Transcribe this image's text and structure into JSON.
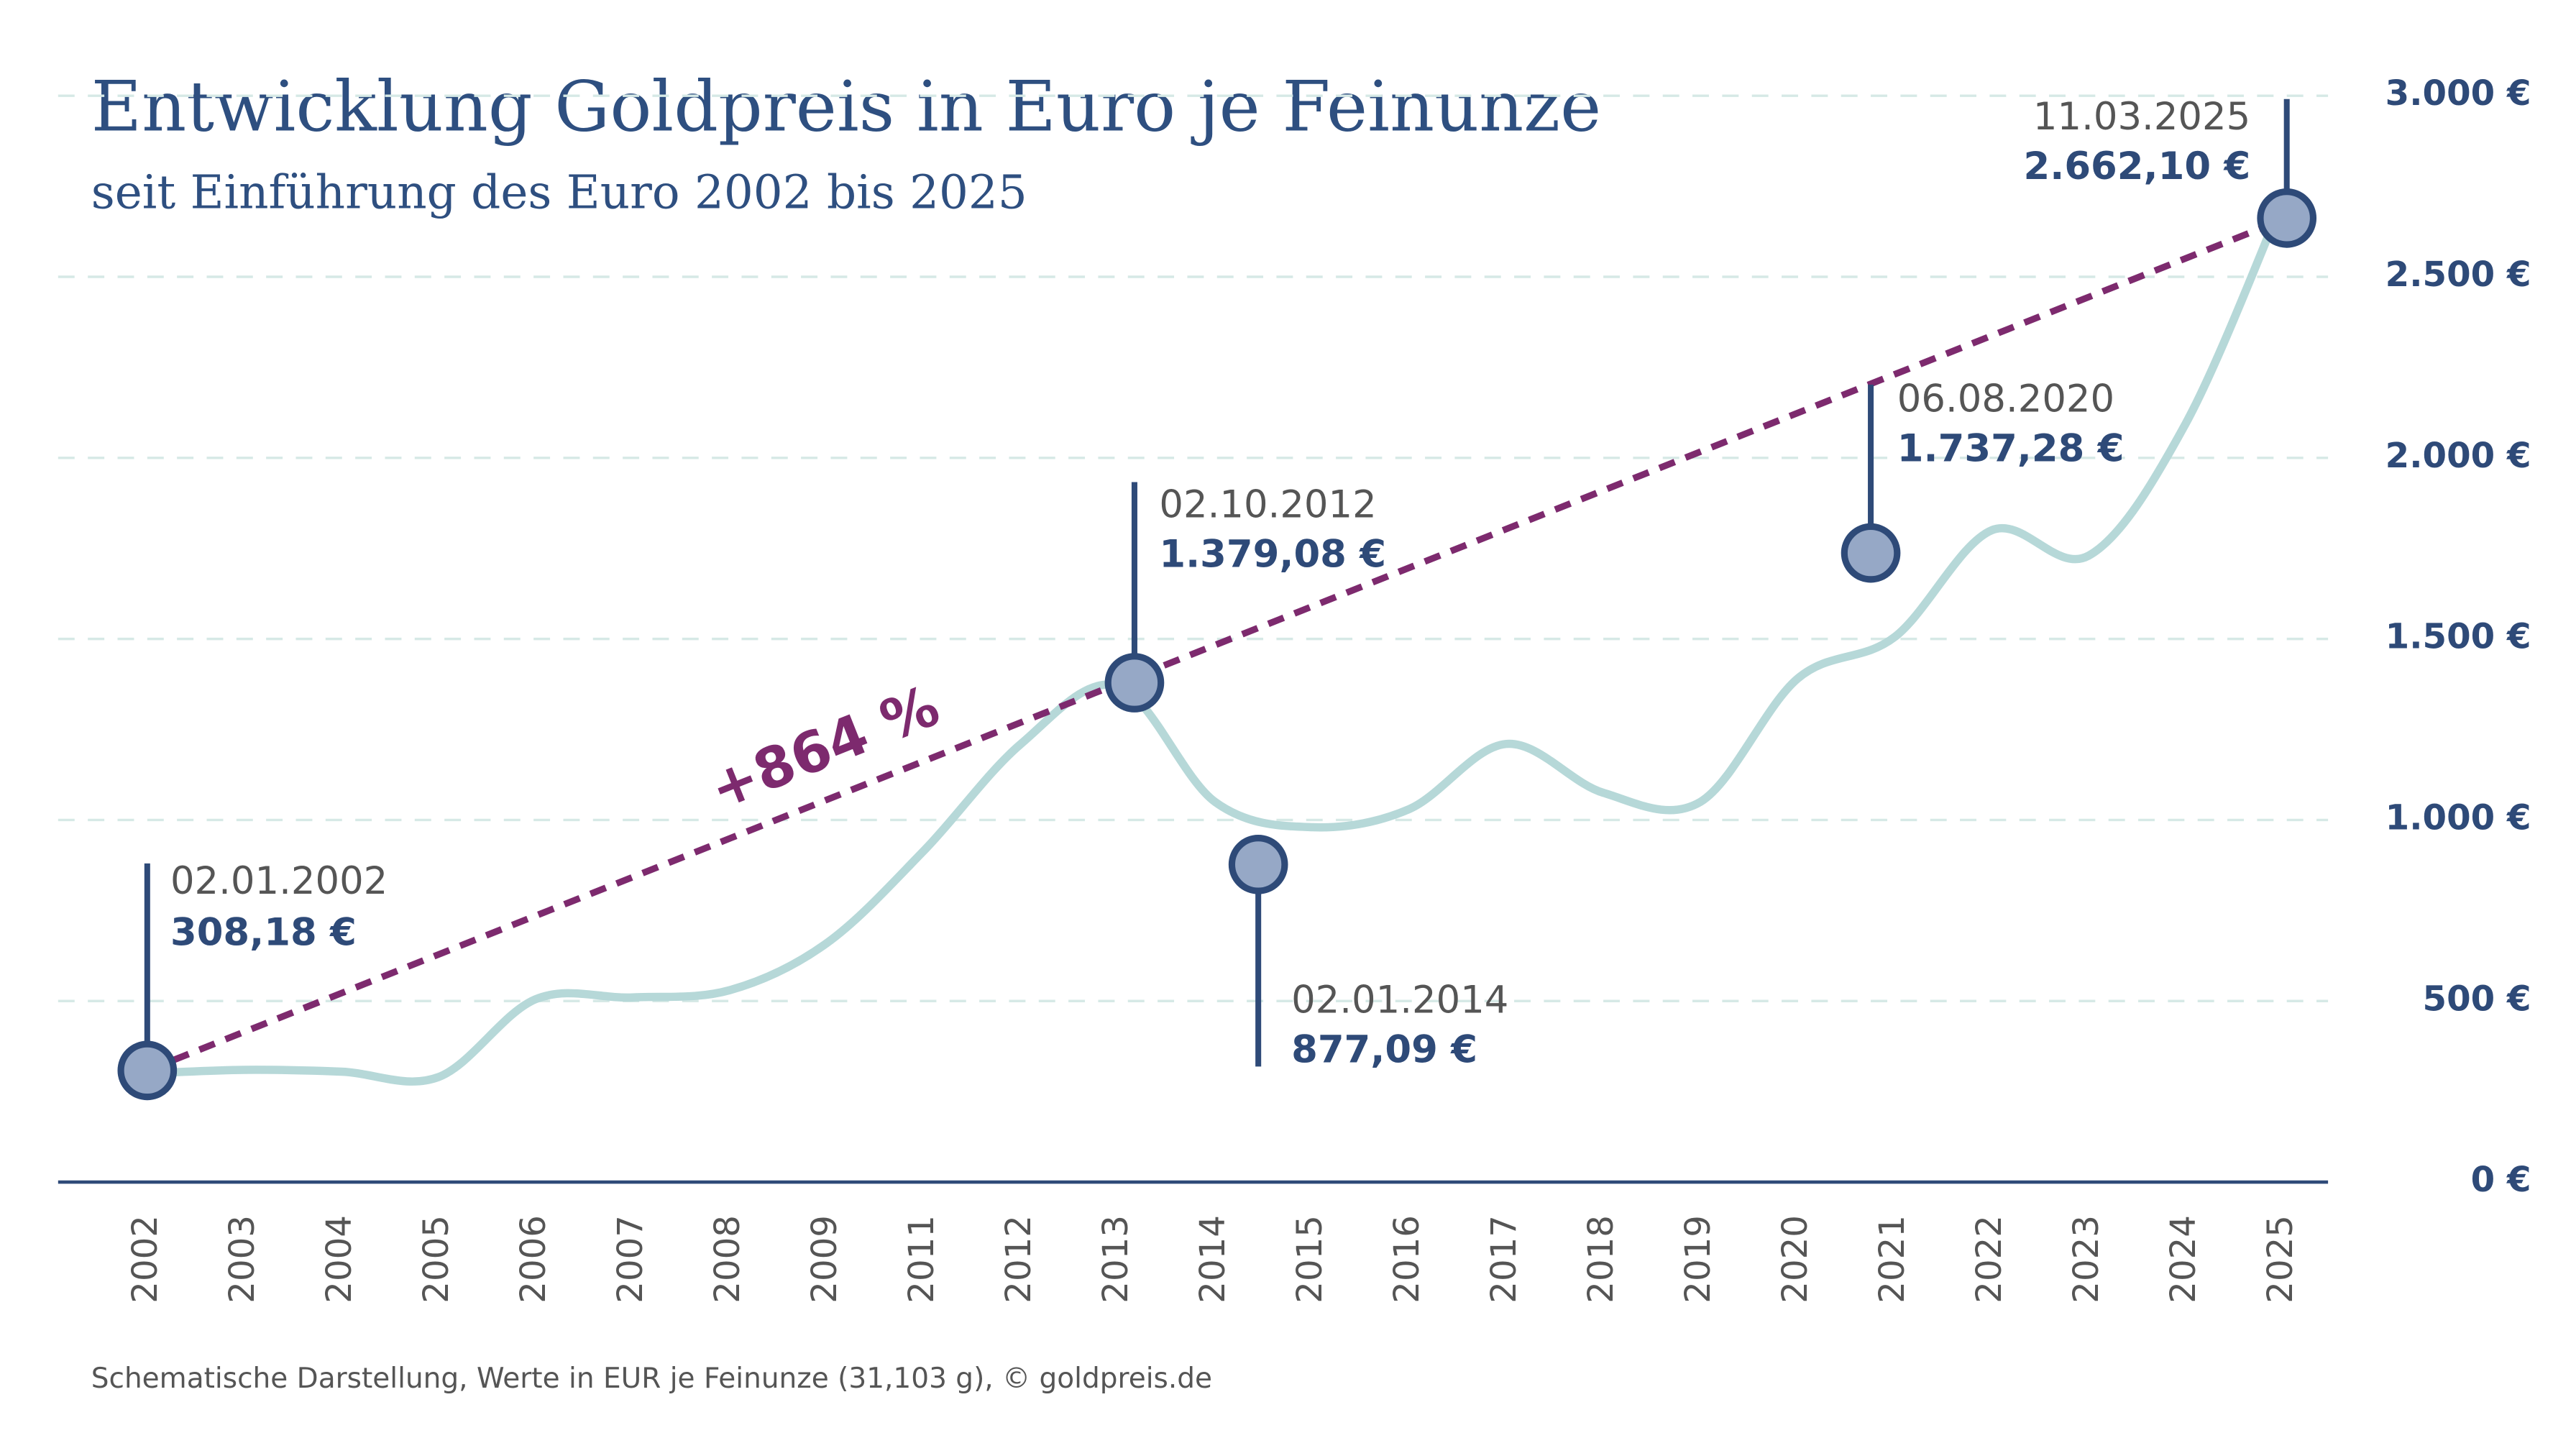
{
  "chart_data": {
    "type": "line",
    "title": "Entwicklung Goldpreis in Euro je Feinunze",
    "subtitle": "seit Einführung des Euro 2002 bis 2025",
    "footnote": "Schematische Darstellung, Werte in EUR je Feinunze (31,103 g), © goldpreis.de",
    "categories": [
      "2002",
      "2003",
      "2004",
      "2005",
      "2006",
      "2007",
      "2008",
      "2009",
      "2011",
      "2012",
      "2013",
      "2014",
      "2015",
      "2016",
      "2017",
      "2018",
      "2019",
      "2020",
      "2021",
      "2022",
      "2023",
      "2024",
      "2025"
    ],
    "series": [
      {
        "color": "#b6d8d8",
        "values": [
          300,
          310,
          305,
          290,
          505,
          510,
          530,
          660,
          915,
          1210,
          1370,
          1050,
          980,
          1030,
          1210,
          1075,
          1050,
          1390,
          1505,
          1800,
          1730,
          2095,
          2710
        ]
      }
    ],
    "ylim": [
      0,
      3000
    ],
    "yticks": [
      {
        "value": 0,
        "label": "0 €"
      },
      {
        "value": 500,
        "label": "500 €"
      },
      {
        "value": 1000,
        "label": "1.000 €"
      },
      {
        "value": 1500,
        "label": "1.500 €"
      },
      {
        "value": 2000,
        "label": "2.000 €"
      },
      {
        "value": 2500,
        "label": "2.500 €"
      },
      {
        "value": 3000,
        "label": "3.000 €"
      }
    ],
    "grid": true,
    "annotations": [
      {
        "date": "02.01.2002",
        "value": 308.18,
        "value_label": "308,18 €"
      },
      {
        "date": "02.10.2012",
        "value": 1379.08,
        "value_label": "1.379,08 €"
      },
      {
        "date": "02.01.2014",
        "value": 877.09,
        "value_label": "877,09 €"
      },
      {
        "date": "06.08.2020",
        "value": 1737.28,
        "value_label": "1.737,28 €"
      },
      {
        "date": "11.03.2025",
        "value": 2662.1,
        "value_label": "2.662,10 €"
      }
    ],
    "trend_label": "+864 %"
  }
}
